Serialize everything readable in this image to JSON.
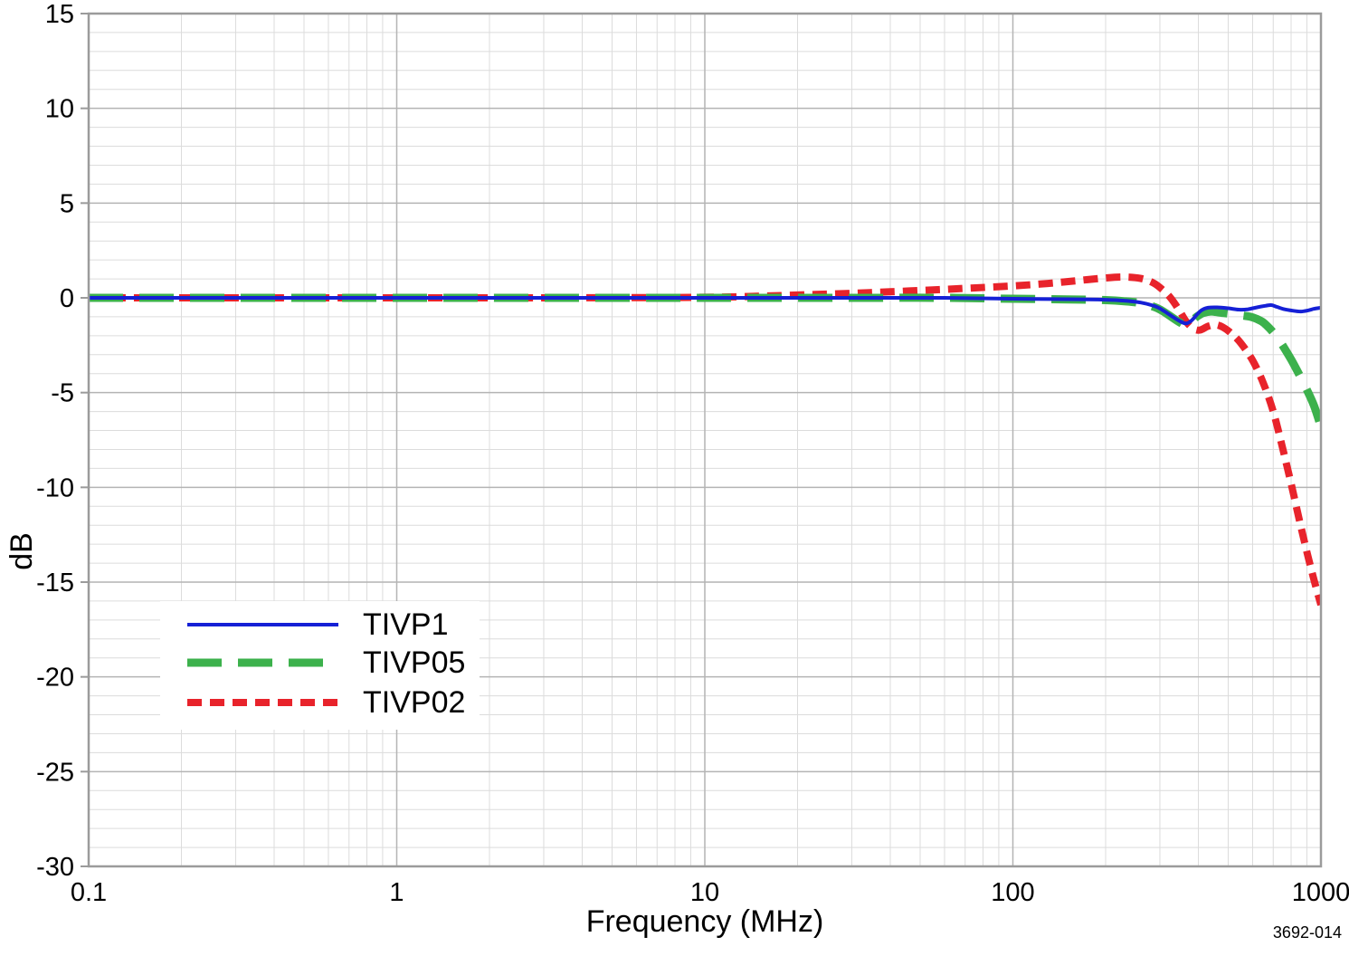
{
  "chart_data": {
    "type": "line",
    "title": "",
    "xlabel": "Frequency (MHz)",
    "ylabel": "dB",
    "x_scale": "log",
    "xlim": [
      0.1,
      1000
    ],
    "ylim": [
      -30,
      15
    ],
    "x_ticks": [
      0.1,
      1,
      10,
      100,
      1000
    ],
    "x_tick_labels": [
      "0.1",
      "1",
      "10",
      "100",
      "1000"
    ],
    "y_major_ticks": [
      15,
      10,
      5,
      0,
      -5,
      -10,
      -15,
      -20,
      -25,
      -30
    ],
    "y_minor_step": 1,
    "grid": "major+minor",
    "legend_position": "inside-lower-left",
    "figure_note": "3692-014",
    "colors": {
      "grid_minor": "#dcdcdc",
      "grid_major": "#b4b4b4",
      "plot_border": "#9b9b9b"
    },
    "series": [
      {
        "name": "TIVP1",
        "color": "#1520d6",
        "line_style": "solid",
        "stroke_width": 4,
        "dash": "",
        "points": [
          [
            0.1,
            0
          ],
          [
            0.3,
            0
          ],
          [
            1,
            0
          ],
          [
            3,
            0
          ],
          [
            10,
            0
          ],
          [
            30,
            0
          ],
          [
            60,
            0
          ],
          [
            100,
            -0.05
          ],
          [
            150,
            -0.07
          ],
          [
            200,
            -0.1
          ],
          [
            230,
            -0.15
          ],
          [
            260,
            -0.25
          ],
          [
            290,
            -0.45
          ],
          [
            310,
            -0.7
          ],
          [
            330,
            -1.0
          ],
          [
            350,
            -1.25
          ],
          [
            365,
            -1.35
          ],
          [
            380,
            -1.2
          ],
          [
            395,
            -0.9
          ],
          [
            410,
            -0.65
          ],
          [
            430,
            -0.52
          ],
          [
            460,
            -0.5
          ],
          [
            500,
            -0.55
          ],
          [
            540,
            -0.62
          ],
          [
            580,
            -0.6
          ],
          [
            620,
            -0.5
          ],
          [
            660,
            -0.42
          ],
          [
            690,
            -0.38
          ],
          [
            720,
            -0.48
          ],
          [
            760,
            -0.6
          ],
          [
            810,
            -0.68
          ],
          [
            860,
            -0.72
          ],
          [
            910,
            -0.66
          ],
          [
            950,
            -0.58
          ],
          [
            1000,
            -0.52
          ]
        ]
      },
      {
        "name": "TIVP05",
        "color": "#3cb14c",
        "line_style": "long-dash",
        "stroke_width": 9,
        "dash": "38 18",
        "points": [
          [
            0.1,
            0
          ],
          [
            0.3,
            0
          ],
          [
            1,
            0
          ],
          [
            3,
            0
          ],
          [
            10,
            0
          ],
          [
            30,
            0
          ],
          [
            60,
            0
          ],
          [
            100,
            -0.05
          ],
          [
            150,
            -0.08
          ],
          [
            200,
            -0.12
          ],
          [
            230,
            -0.18
          ],
          [
            260,
            -0.28
          ],
          [
            290,
            -0.5
          ],
          [
            310,
            -0.75
          ],
          [
            330,
            -1.05
          ],
          [
            350,
            -1.32
          ],
          [
            365,
            -1.45
          ],
          [
            380,
            -1.25
          ],
          [
            395,
            -1.0
          ],
          [
            415,
            -0.8
          ],
          [
            440,
            -0.72
          ],
          [
            470,
            -0.78
          ],
          [
            510,
            -0.85
          ],
          [
            550,
            -0.92
          ],
          [
            590,
            -1.0
          ],
          [
            620,
            -1.12
          ],
          [
            650,
            -1.3
          ],
          [
            680,
            -1.6
          ],
          [
            710,
            -1.95
          ],
          [
            750,
            -2.5
          ],
          [
            800,
            -3.25
          ],
          [
            850,
            -4.05
          ],
          [
            900,
            -4.85
          ],
          [
            950,
            -5.7
          ],
          [
            1000,
            -6.8
          ]
        ]
      },
      {
        "name": "TIVP02",
        "color": "#e8232b",
        "line_style": "short-dash",
        "stroke_width": 8,
        "dash": "16 9",
        "points": [
          [
            0.1,
            0
          ],
          [
            0.3,
            0
          ],
          [
            1,
            0
          ],
          [
            3,
            0
          ],
          [
            8,
            0.02
          ],
          [
            12,
            0.05
          ],
          [
            16,
            0.1
          ],
          [
            22,
            0.17
          ],
          [
            30,
            0.24
          ],
          [
            40,
            0.32
          ],
          [
            55,
            0.42
          ],
          [
            70,
            0.5
          ],
          [
            100,
            0.63
          ],
          [
            130,
            0.76
          ],
          [
            160,
            0.9
          ],
          [
            200,
            1.05
          ],
          [
            230,
            1.1
          ],
          [
            260,
            1.02
          ],
          [
            285,
            0.8
          ],
          [
            305,
            0.45
          ],
          [
            325,
            0.0
          ],
          [
            345,
            -0.6
          ],
          [
            365,
            -1.25
          ],
          [
            385,
            -1.62
          ],
          [
            405,
            -1.7
          ],
          [
            430,
            -1.5
          ],
          [
            455,
            -1.42
          ],
          [
            480,
            -1.55
          ],
          [
            510,
            -1.85
          ],
          [
            550,
            -2.4
          ],
          [
            600,
            -3.3
          ],
          [
            650,
            -4.5
          ],
          [
            700,
            -6.0
          ],
          [
            750,
            -7.9
          ],
          [
            800,
            -9.8
          ],
          [
            850,
            -11.7
          ],
          [
            900,
            -13.4
          ],
          [
            950,
            -14.9
          ],
          [
            1000,
            -16.2
          ]
        ]
      }
    ]
  }
}
